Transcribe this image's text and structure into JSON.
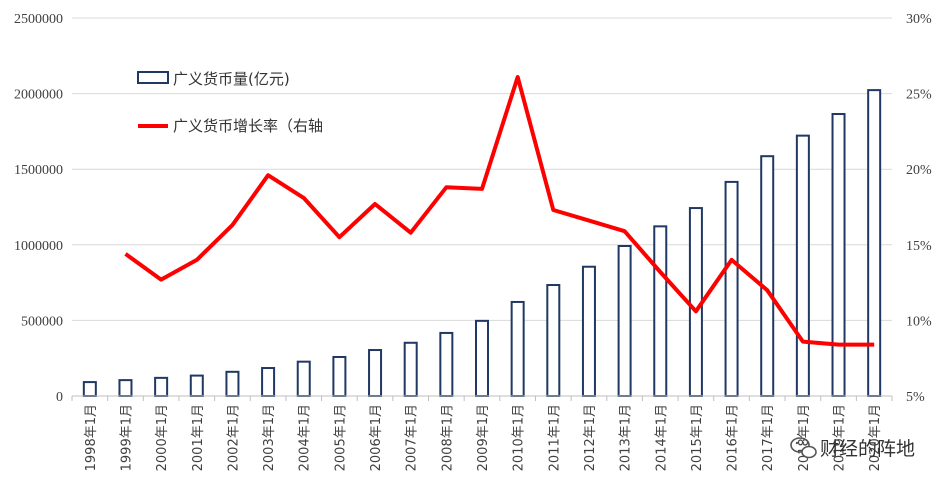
{
  "chart_data": {
    "type": "bar",
    "categories": [
      "1998年1月",
      "1999年1月",
      "2000年1月",
      "2001年1月",
      "2002年1月",
      "2003年1月",
      "2004年1月",
      "2005年1月",
      "2006年1月",
      "2007年1月",
      "2008年1月",
      "2009年1月",
      "2010年1月",
      "2011年1月",
      "2012年1月",
      "2013年1月",
      "2014年1月",
      "2015年1月",
      "2016年1月",
      "2017年1月",
      "2018年1月",
      "2019年1月",
      "2020年1月"
    ],
    "series": [
      {
        "name": "广义货币量(亿元)",
        "type": "bar",
        "axis": "left",
        "values": [
          92000,
          105000,
          120000,
          135000,
          160000,
          185000,
          227000,
          258000,
          304000,
          352000,
          417000,
          497000,
          622000,
          734000,
          855000,
          992000,
          1122000,
          1243000,
          1416000,
          1586000,
          1722000,
          1865000,
          2023000
        ]
      },
      {
        "name": "广义货币增长率（右轴",
        "type": "line",
        "axis": "right",
        "values": [
          null,
          0.144,
          0.127,
          0.14,
          0.163,
          0.196,
          0.181,
          0.155,
          0.177,
          0.158,
          0.188,
          0.187,
          0.261,
          0.173,
          0.166,
          0.159,
          0.132,
          0.106,
          0.14,
          0.12,
          0.086,
          0.084,
          0.084
        ]
      }
    ],
    "y_left": {
      "ylim": [
        0,
        2500000
      ],
      "ticks": [
        "0",
        "500000",
        "1000000",
        "1500000",
        "2000000",
        "2500000"
      ]
    },
    "y_right": {
      "ylim": [
        0.05,
        0.3
      ],
      "ticks": [
        "5%",
        "10%",
        "15%",
        "20%",
        "25%",
        "30%"
      ]
    },
    "grid": true,
    "legend_position": "top-left",
    "bar_color": "#1f3864",
    "line_color": "#ff0000",
    "title": "",
    "xlabel": "",
    "ylabel": ""
  },
  "watermark": {
    "text": "财经的阵地",
    "icon": "wechat-icon"
  }
}
